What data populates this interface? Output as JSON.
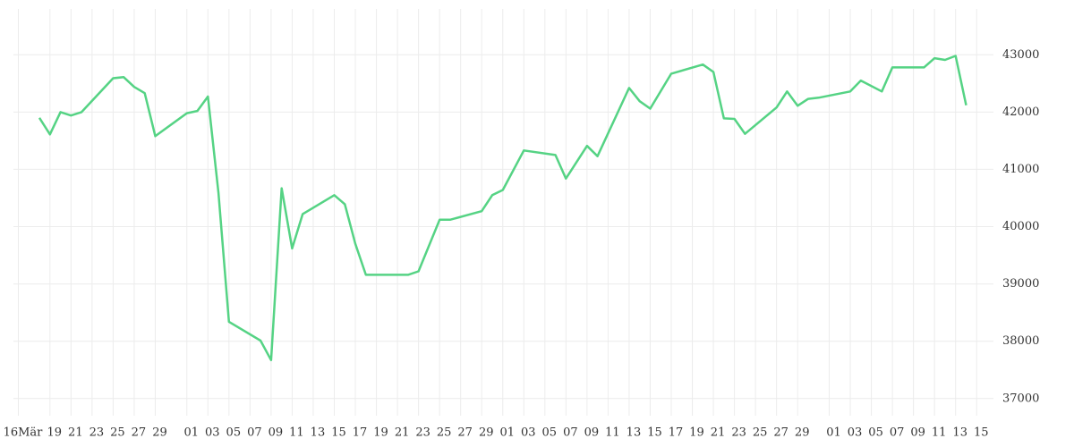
{
  "chart_data": {
    "type": "line",
    "x": [
      "03-18",
      "03-19",
      "03-20",
      "03-21",
      "03-22",
      "03-25",
      "03-26",
      "03-27",
      "03-28",
      "03-29",
      "04-01",
      "04-02",
      "04-03",
      "04-04",
      "04-05",
      "04-08",
      "04-09",
      "04-10",
      "04-11",
      "04-12",
      "04-15",
      "04-16",
      "04-17",
      "04-18",
      "04-22",
      "04-23",
      "04-25",
      "04-26",
      "04-29",
      "04-30",
      "05-01",
      "05-03",
      "05-06",
      "05-07",
      "05-09",
      "05-10",
      "05-13",
      "05-14",
      "05-15",
      "05-17",
      "05-20",
      "05-21",
      "05-22",
      "05-23",
      "05-24",
      "05-27",
      "05-28",
      "05-29",
      "05-30",
      "05-31",
      "06-03",
      "06-04",
      "06-06",
      "06-07",
      "06-10",
      "06-11",
      "06-12",
      "06-13",
      "06-14"
    ],
    "series": [
      {
        "color": "#55d384",
        "values": [
          41900,
          41610,
          42000,
          41940,
          42000,
          42590,
          42610,
          42440,
          42330,
          41580,
          41980,
          42020,
          42270,
          40590,
          38340,
          38010,
          37670,
          40670,
          39620,
          40220,
          40550,
          40390,
          39700,
          39160,
          39160,
          39220,
          40120,
          40120,
          40270,
          40550,
          40640,
          41330,
          41250,
          40840,
          41410,
          41230,
          42420,
          42190,
          42060,
          42670,
          42830,
          42700,
          41890,
          41880,
          41620,
          42080,
          42360,
          42110,
          42230,
          42250,
          42360,
          42550,
          42360,
          42780,
          42780,
          42940,
          42910,
          42980,
          42120
        ]
      }
    ],
    "xlim": [
      "03-16",
      "06-16"
    ],
    "xticks": [
      {
        "value": "03-16",
        "label": "16Mär"
      },
      {
        "value": "03-19",
        "label": "19"
      },
      {
        "value": "03-21",
        "label": "21"
      },
      {
        "value": "03-23",
        "label": "23"
      },
      {
        "value": "03-25",
        "label": "25"
      },
      {
        "value": "03-27",
        "label": "27"
      },
      {
        "value": "03-29",
        "label": "29"
      },
      {
        "value": "04-01",
        "label": "01"
      },
      {
        "value": "04-03",
        "label": "03"
      },
      {
        "value": "04-05",
        "label": "05"
      },
      {
        "value": "04-07",
        "label": "07"
      },
      {
        "value": "04-09",
        "label": "09"
      },
      {
        "value": "04-11",
        "label": "11"
      },
      {
        "value": "04-13",
        "label": "13"
      },
      {
        "value": "04-15",
        "label": "15"
      },
      {
        "value": "04-17",
        "label": "17"
      },
      {
        "value": "04-19",
        "label": "19"
      },
      {
        "value": "04-21",
        "label": "21"
      },
      {
        "value": "04-23",
        "label": "23"
      },
      {
        "value": "04-25",
        "label": "25"
      },
      {
        "value": "04-27",
        "label": "27"
      },
      {
        "value": "04-29",
        "label": "29"
      },
      {
        "value": "05-01",
        "label": "01"
      },
      {
        "value": "05-03",
        "label": "03"
      },
      {
        "value": "05-05",
        "label": "05"
      },
      {
        "value": "05-07",
        "label": "07"
      },
      {
        "value": "05-09",
        "label": "09"
      },
      {
        "value": "05-11",
        "label": "11"
      },
      {
        "value": "05-13",
        "label": "13"
      },
      {
        "value": "05-15",
        "label": "15"
      },
      {
        "value": "05-17",
        "label": "17"
      },
      {
        "value": "05-19",
        "label": "19"
      },
      {
        "value": "05-21",
        "label": "21"
      },
      {
        "value": "05-23",
        "label": "23"
      },
      {
        "value": "05-25",
        "label": "25"
      },
      {
        "value": "05-27",
        "label": "27"
      },
      {
        "value": "05-29",
        "label": "29"
      },
      {
        "value": "06-01",
        "label": "01"
      },
      {
        "value": "06-03",
        "label": "03"
      },
      {
        "value": "06-05",
        "label": "05"
      },
      {
        "value": "06-07",
        "label": "07"
      },
      {
        "value": "06-09",
        "label": "09"
      },
      {
        "value": "06-11",
        "label": "11"
      },
      {
        "value": "06-13",
        "label": "13"
      },
      {
        "value": "06-15",
        "label": "15"
      }
    ],
    "ylim": [
      36700,
      43800
    ],
    "yticks": [
      37000,
      38000,
      39000,
      40000,
      41000,
      42000,
      43000
    ],
    "grid": true
  }
}
